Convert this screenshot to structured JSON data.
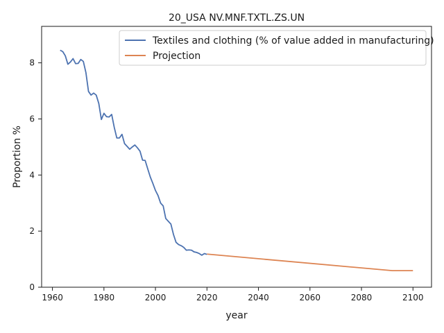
{
  "chart_data": {
    "type": "line",
    "title": "20_USA NV.MNF.TXTL.ZS.UN",
    "xlabel": "year",
    "ylabel": "Proportion %",
    "xlim": [
      1955.8,
      2107.2
    ],
    "ylim": [
      0,
      9.3
    ],
    "xticks": [
      1960,
      1980,
      2000,
      2020,
      2040,
      2060,
      2080,
      2100
    ],
    "yticks": [
      0,
      2,
      4,
      6,
      8
    ],
    "grid": false,
    "legend_position": "top-right",
    "series": [
      {
        "name": "Textiles and clothing (% of value added in manufacturing)",
        "color": "#4c72b0",
        "x": [
          1963,
          1964,
          1965,
          1966,
          1967,
          1968,
          1969,
          1970,
          1971,
          1972,
          1973,
          1974,
          1975,
          1976,
          1977,
          1978,
          1979,
          1980,
          1981,
          1982,
          1983,
          1984,
          1985,
          1986,
          1987,
          1988,
          1989,
          1990,
          1991,
          1992,
          1993,
          1994,
          1995,
          1996,
          1997,
          1998,
          1999,
          2000,
          2001,
          2002,
          2003,
          2004,
          2005,
          2006,
          2007,
          2008,
          2009,
          2010,
          2011,
          2012,
          2013,
          2014,
          2015,
          2016,
          2017,
          2018,
          2019,
          2020
        ],
        "y": [
          8.45,
          8.4,
          8.25,
          7.95,
          8.03,
          8.15,
          7.97,
          7.98,
          8.12,
          8.05,
          7.65,
          6.98,
          6.85,
          6.92,
          6.85,
          6.55,
          5.98,
          6.2,
          6.08,
          6.07,
          6.16,
          5.7,
          5.32,
          5.32,
          5.45,
          5.12,
          5.02,
          4.92,
          5.0,
          5.07,
          4.97,
          4.85,
          4.53,
          4.52,
          4.22,
          3.93,
          3.7,
          3.45,
          3.27,
          3.0,
          2.9,
          2.45,
          2.35,
          2.25,
          1.88,
          1.6,
          1.52,
          1.48,
          1.42,
          1.32,
          1.33,
          1.32,
          1.26,
          1.24,
          1.2,
          1.14,
          1.2,
          1.17
        ]
      },
      {
        "name": "Projection",
        "color": "#dd8452",
        "x": [
          2020,
          2092,
          2100
        ],
        "y": [
          1.18,
          0.59,
          0.59
        ]
      }
    ]
  }
}
